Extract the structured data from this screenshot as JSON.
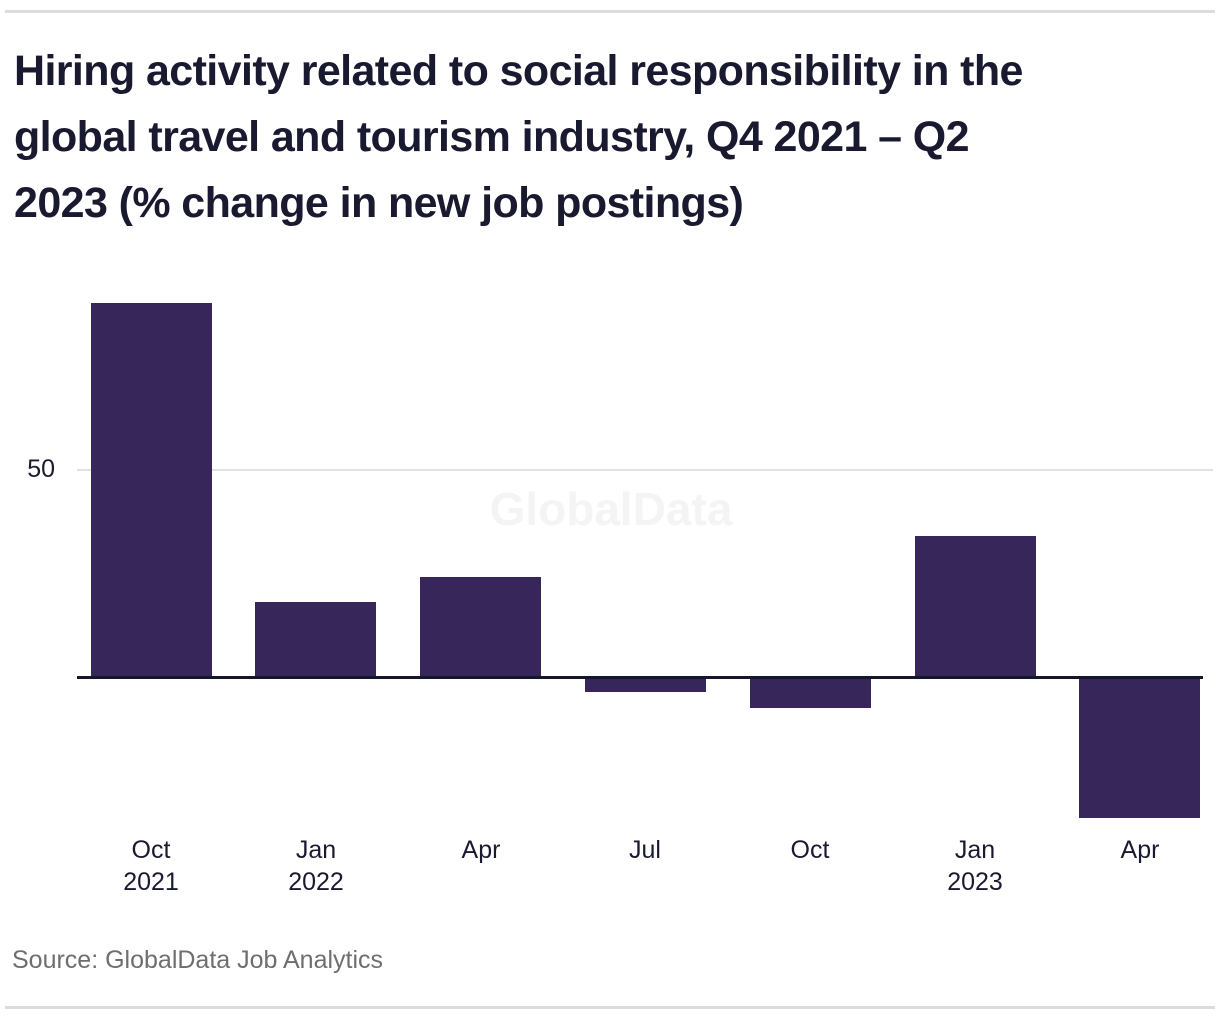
{
  "page": {
    "title": "Hiring activity related to social responsibility in the\nglobal travel and tourism industry, Q4 2021 – Q2\n2023 (% change in new job postings)",
    "watermark": "GlobalData",
    "source": "Source: GlobalData Job Analytics"
  },
  "colors": {
    "bar": "#37265a",
    "title_text": "#191a30",
    "axis_line": "#14162b",
    "gridline": "#e2e2e2",
    "rule": "#dcdcdc",
    "source_text": "#6e6e6e",
    "watermark_text": "#f4f4f4"
  },
  "chart_data": {
    "type": "bar",
    "title": "Hiring activity related to social responsibility in the global travel and tourism industry, Q4 2021 – Q2 2023 (% change in new job postings)",
    "categories": [
      "Oct 2021",
      "Jan 2022",
      "Apr 2022",
      "Jul 2022",
      "Oct 2022",
      "Jan 2023",
      "Apr 2023"
    ],
    "x_tick_labels": [
      [
        "Oct",
        "2021"
      ],
      [
        "Jan",
        "2022"
      ],
      [
        "Apr",
        ""
      ],
      [
        "Jul",
        ""
      ],
      [
        "Oct",
        ""
      ],
      [
        "Jan",
        "2023"
      ],
      [
        "Apr",
        ""
      ]
    ],
    "values": [
      90,
      18,
      24,
      -3.5,
      -7.5,
      34,
      -34
    ],
    "xlabel": "",
    "ylabel": "% change in new job postings",
    "y_ticks": [
      50
    ],
    "ylim": [
      -45,
      98
    ],
    "grid": "single horizontal gridline at 50",
    "legend": "none",
    "bar_color": "#37265a",
    "source": "GlobalData Job Analytics"
  }
}
